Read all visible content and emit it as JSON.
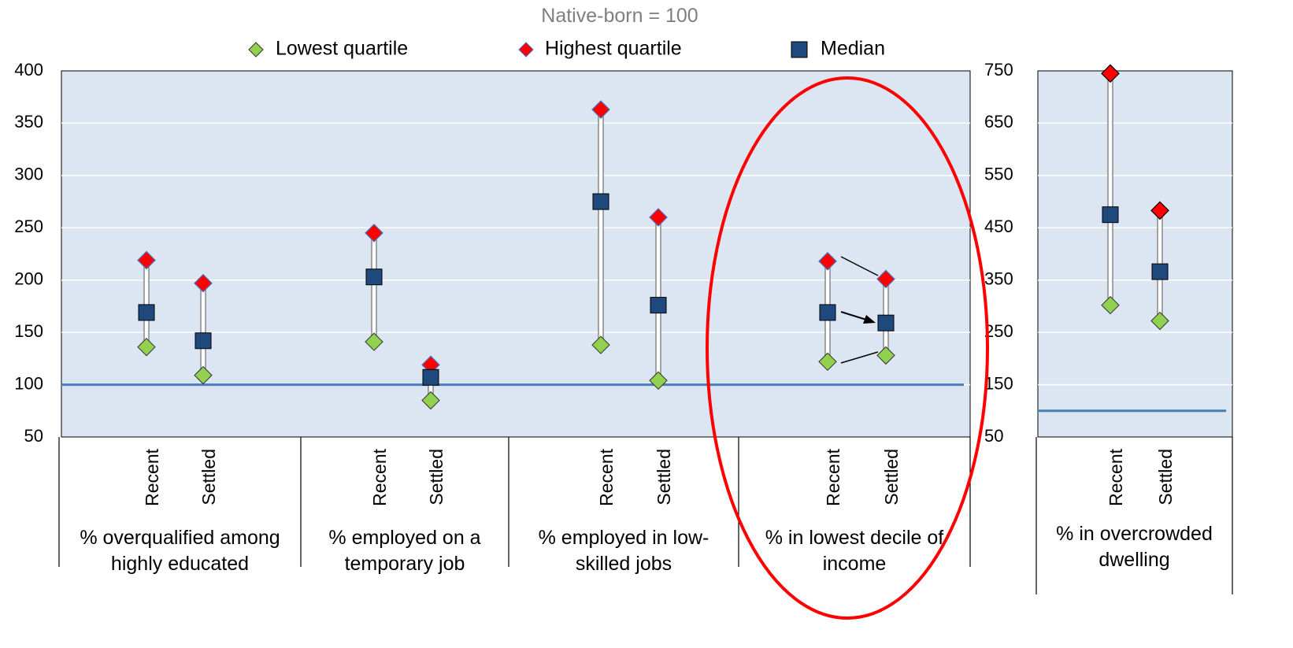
{
  "chart_data": [
    {
      "type": "dot-range",
      "subtitle": "Native-born = 100",
      "categories": [
        "Recent",
        "Settled",
        "Recent",
        "Settled",
        "Recent",
        "Settled",
        "Recent",
        "Settled"
      ],
      "groups": [
        "% overqualified among highly educated",
        "% employed on a temporary job",
        "% employed in low-skilled jobs",
        "% in lowest decile of income"
      ],
      "series": [
        {
          "name": "Lowest quartile",
          "color": "#92d050",
          "values": [
            136,
            109,
            141,
            85,
            138,
            104,
            122,
            128
          ]
        },
        {
          "name": "Highest quartile",
          "color": "#ff0000",
          "values": [
            219,
            197,
            245,
            119,
            363,
            260,
            218,
            201
          ]
        },
        {
          "name": "Median",
          "color": "#1f497d",
          "values": [
            169,
            142,
            203,
            107,
            275,
            176,
            169,
            159
          ]
        }
      ],
      "ylim": [
        50,
        400
      ],
      "yticks": [
        50,
        100,
        150,
        200,
        250,
        300,
        350,
        400
      ],
      "reference_line": 100,
      "grid": true
    },
    {
      "type": "dot-range",
      "categories": [
        "Recent",
        "Settled"
      ],
      "groups": [
        "% in overcrowded dwelling"
      ],
      "series": [
        {
          "color": "#92d050",
          "values": [
            302,
            272
          ]
        },
        {
          "color": "#ff0000",
          "values": [
            745,
            483
          ]
        },
        {
          "color": "#1f497d",
          "values": [
            475,
            366
          ]
        }
      ],
      "ylim": [
        50,
        750
      ],
      "yticks": [
        50,
        150,
        250,
        350,
        450,
        550,
        650,
        750
      ],
      "reference_line": 100,
      "grid": true
    }
  ]
}
